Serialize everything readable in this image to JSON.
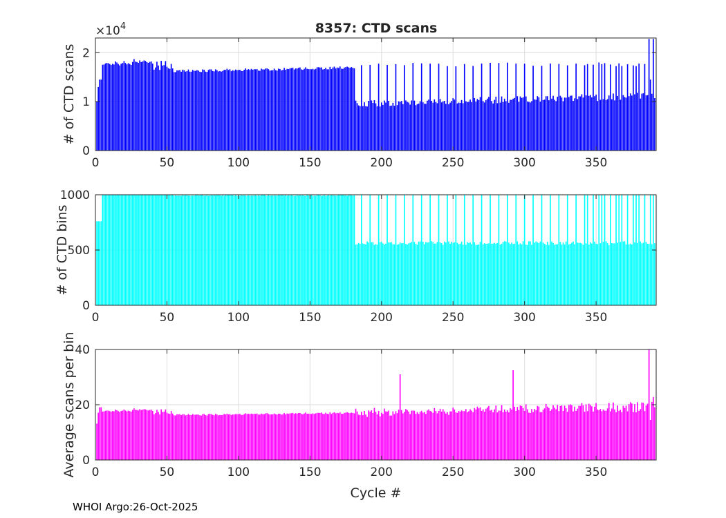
{
  "title": "8357: CTD scans",
  "footer": "WHOI Argo:26-Oct-2025",
  "chart_data": [
    {
      "type": "bar",
      "id": "scans",
      "title": "8357: CTD scans",
      "xlabel": "",
      "ylabel": "# of CTD scans",
      "xlim": [
        0,
        392
      ],
      "ylim": [
        0,
        2.3
      ],
      "exponent_label": "×10^4",
      "xticks": [
        "0",
        "50",
        "100",
        "150",
        "200",
        "250",
        "300",
        "350"
      ],
      "yticks": [
        "0",
        "1",
        "2"
      ],
      "color": "#0000ff",
      "grid": true,
      "series_gen": "scans"
    },
    {
      "type": "bar",
      "id": "bins",
      "xlabel": "",
      "ylabel": "# of CTD bins",
      "xlim": [
        0,
        392
      ],
      "ylim": [
        0,
        1000
      ],
      "xticks": [
        "0",
        "50",
        "100",
        "150",
        "200",
        "250",
        "300",
        "350"
      ],
      "yticks": [
        "0",
        "500",
        "1000"
      ],
      "color": "#00ffff",
      "grid": true,
      "series_gen": "bins"
    },
    {
      "type": "bar",
      "id": "avg",
      "xlabel": "Cycle #",
      "ylabel": "Average scans per bin",
      "xlim": [
        0,
        392
      ],
      "ylim": [
        0,
        40
      ],
      "xticks": [
        "0",
        "50",
        "100",
        "150",
        "200",
        "250",
        "300",
        "350"
      ],
      "yticks": [
        "0",
        "20",
        "40"
      ],
      "color": "#ff00ff",
      "grid": true,
      "series_gen": "avg"
    }
  ],
  "series_summary": {
    "cycles": [
      1,
      391
    ],
    "scans_typical_early": 1.7,
    "scans_typical_late": 1.1,
    "scans_max": 2.28,
    "bins_early": 1000,
    "bins_late": 560,
    "avg_typical_early": 17,
    "avg_typical_late": 20,
    "avg_spikes": [
      {
        "cycle": 213,
        "value": 31
      },
      {
        "cycle": 292,
        "value": 32
      }
    ]
  }
}
